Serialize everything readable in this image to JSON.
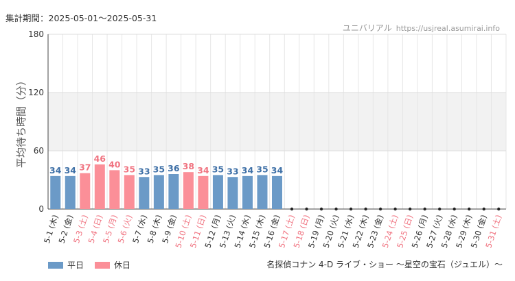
{
  "period_text": "集計期間：2025-05-01～2025-05-31",
  "brand": {
    "name": "ユニバリアル",
    "url": "https://usjreal.asumirai.info"
  },
  "footer_text": "名探偵コナン 4-D ライブ・ショー ～星空の宝石（ジュエル）～",
  "legend": [
    {
      "label": "平日",
      "color": "#6b9ac7",
      "key": "weekday"
    },
    {
      "label": "休日",
      "color": "#fb8f98",
      "key": "holiday"
    }
  ],
  "chart_data": {
    "type": "bar",
    "title": "",
    "ylabel": "平均待ち時間（分）",
    "ylim": [
      0,
      180
    ],
    "yticks": [
      0,
      60,
      120,
      180
    ],
    "grid": true,
    "band_range": [
      60,
      120
    ],
    "colors": {
      "weekday": "#6b9ac7",
      "holiday": "#fb8f98",
      "weekday_text": "#3d6fa6",
      "holiday_text": "#f07380"
    },
    "categories": [
      "5-1 (木)",
      "5-2 (金)",
      "5-3 (土)",
      "5-4 (日)",
      "5-5 (月)",
      "5-6 (火)",
      "5-7 (水)",
      "5-8 (木)",
      "5-9 (金)",
      "5-10 (土)",
      "5-11 (日)",
      "5-12 (月)",
      "5-13 (火)",
      "5-14 (水)",
      "5-15 (木)",
      "5-16 (金)",
      "5-17 (土)",
      "5-18 (日)",
      "5-19 (月)",
      "5-20 (火)",
      "5-21 (水)",
      "5-22 (木)",
      "5-23 (金)",
      "5-24 (土)",
      "5-25 (日)",
      "5-26 (月)",
      "5-27 (火)",
      "5-28 (水)",
      "5-29 (木)",
      "5-30 (金)",
      "5-31 (土)"
    ],
    "day_type": [
      "weekday",
      "weekday",
      "holiday",
      "holiday",
      "holiday",
      "holiday",
      "weekday",
      "weekday",
      "weekday",
      "holiday",
      "holiday",
      "weekday",
      "weekday",
      "weekday",
      "weekday",
      "weekday",
      "holiday",
      "holiday",
      "weekday",
      "weekday",
      "weekday",
      "weekday",
      "weekday",
      "holiday",
      "holiday",
      "weekday",
      "weekday",
      "weekday",
      "weekday",
      "weekday",
      "holiday"
    ],
    "values": [
      34,
      34,
      37,
      46,
      40,
      35,
      33,
      35,
      36,
      38,
      34,
      35,
      33,
      34,
      35,
      34,
      null,
      null,
      null,
      null,
      null,
      null,
      null,
      null,
      null,
      null,
      null,
      null,
      null,
      null,
      null
    ]
  }
}
